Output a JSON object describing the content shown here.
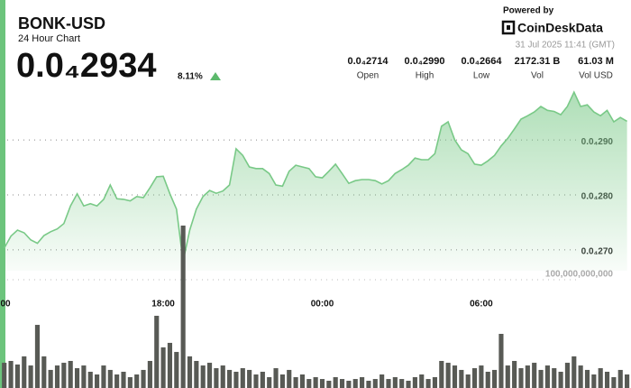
{
  "header": {
    "title": "BONK-USD",
    "subtitle": "24 Hour Chart",
    "price": "0.0₄2934",
    "change": "8.11%",
    "powered_by": "Powered by",
    "brand": "CoinDeskData",
    "timestamp": "31 Jul 2025 11:41 (GMT)",
    "stats": [
      {
        "value": "0.0₄2714",
        "label": "Open"
      },
      {
        "value": "0.0₄2990",
        "label": "High"
      },
      {
        "value": "0.0₄2664",
        "label": "Low"
      },
      {
        "value": "2172.31 B",
        "label": "Vol"
      },
      {
        "value": "61.03 M",
        "label": "Vol USD"
      }
    ]
  },
  "chart_data": [
    {
      "type": "line",
      "area": true,
      "color": "#79c987",
      "x": [
        12,
        12.25,
        12.5,
        12.75,
        13,
        13.25,
        13.5,
        13.75,
        14,
        14.25,
        14.5,
        14.75,
        15,
        15.25,
        15.5,
        15.75,
        16,
        16.25,
        16.5,
        16.75,
        17,
        17.25,
        17.5,
        17.75,
        18,
        18.25,
        18.5,
        18.75,
        19,
        19.25,
        19.5,
        19.75,
        20,
        20.25,
        20.5,
        20.75,
        21,
        21.25,
        21.5,
        21.75,
        22,
        22.25,
        22.5,
        22.75,
        23,
        23.25,
        23.5,
        23.75,
        24,
        24.25,
        24.5,
        24.75,
        25,
        25.25,
        25.5,
        25.75,
        26,
        26.25,
        26.5,
        26.75,
        27,
        27.25,
        27.5,
        27.75,
        28,
        28.25,
        28.5,
        28.75,
        29,
        29.25,
        29.5,
        29.75,
        30,
        30.25,
        30.5,
        30.75,
        31,
        31.25,
        31.5,
        31.75,
        32,
        32.25,
        32.5,
        32.75,
        33,
        33.25,
        33.5,
        33.75,
        34,
        34.25,
        34.5,
        34.75,
        35,
        35.25,
        35.5
      ],
      "values": [
        2.703e-05,
        2.725e-05,
        2.736e-05,
        2.731e-05,
        2.718e-05,
        2.712e-05,
        2.726e-05,
        2.733e-05,
        2.738e-05,
        2.748e-05,
        2.78e-05,
        2.802e-05,
        2.78e-05,
        2.784e-05,
        2.78e-05,
        2.792e-05,
        2.818e-05,
        2.793e-05,
        2.792e-05,
        2.789e-05,
        2.797e-05,
        2.795e-05,
        2.813e-05,
        2.833e-05,
        2.834e-05,
        2.802e-05,
        2.774e-05,
        2.679e-05,
        2.736e-05,
        2.774e-05,
        2.797e-05,
        2.808e-05,
        2.803e-05,
        2.807e-05,
        2.818e-05,
        2.884e-05,
        2.872e-05,
        2.851e-05,
        2.848e-05,
        2.848e-05,
        2.839e-05,
        2.818e-05,
        2.816e-05,
        2.843e-05,
        2.854e-05,
        2.851e-05,
        2.848e-05,
        2.833e-05,
        2.831e-05,
        2.843e-05,
        2.856e-05,
        2.839e-05,
        2.821e-05,
        2.826e-05,
        2.828e-05,
        2.828e-05,
        2.826e-05,
        2.82e-05,
        2.826e-05,
        2.839e-05,
        2.846e-05,
        2.854e-05,
        2.867e-05,
        2.864e-05,
        2.864e-05,
        2.875e-05,
        2.925e-05,
        2.933e-05,
        2.9e-05,
        2.882e-05,
        2.875e-05,
        2.856e-05,
        2.854e-05,
        2.862e-05,
        2.872e-05,
        2.889e-05,
        2.903e-05,
        2.92e-05,
        2.938e-05,
        2.944e-05,
        2.951e-05,
        2.961e-05,
        2.954e-05,
        2.952e-05,
        2.946e-05,
        2.961e-05,
        2.987e-05,
        2.961e-05,
        2.964e-05,
        2.951e-05,
        2.944e-05,
        2.954e-05,
        2.933e-05,
        2.941e-05,
        2.934e-05
      ],
      "xlim": [
        11.84,
        35.65
      ],
      "xticks": [
        {
          "value": 12,
          "label": "00"
        },
        {
          "value": 18,
          "label": "18:00"
        },
        {
          "value": 24,
          "label": "00:00"
        },
        {
          "value": 30,
          "label": "06:00"
        }
      ],
      "ylim": [
        2.662e-05,
        3.007e-05
      ],
      "yticks": [
        {
          "value": 2.7e-05,
          "label": "0.0₄270"
        },
        {
          "value": 2.8e-05,
          "label": "0.0₄280"
        },
        {
          "value": 2.9e-05,
          "label": "0.0₄290"
        }
      ],
      "grid": true
    },
    {
      "type": "bar",
      "color": "#585a55",
      "x": [
        12,
        12.25,
        12.5,
        12.75,
        13,
        13.25,
        13.5,
        13.75,
        14,
        14.25,
        14.5,
        14.75,
        15,
        15.25,
        15.5,
        15.75,
        16,
        16.25,
        16.5,
        16.75,
        17,
        17.25,
        17.5,
        17.75,
        18,
        18.25,
        18.5,
        18.75,
        19,
        19.25,
        19.5,
        19.75,
        20,
        20.25,
        20.5,
        20.75,
        21,
        21.25,
        21.5,
        21.75,
        22,
        22.25,
        22.5,
        22.75,
        23,
        23.25,
        23.5,
        23.75,
        24,
        24.25,
        24.5,
        24.75,
        25,
        25.25,
        25.5,
        25.75,
        26,
        26.25,
        26.5,
        26.75,
        27,
        27.25,
        27.5,
        27.75,
        28,
        28.25,
        28.5,
        28.75,
        29,
        29.25,
        29.5,
        29.75,
        30,
        30.25,
        30.5,
        30.75,
        31,
        31.25,
        31.5,
        31.75,
        32,
        32.25,
        32.5,
        32.75,
        33,
        33.25,
        33.5,
        33.75,
        34,
        34.25,
        34.5,
        34.75,
        35,
        35.25,
        35.5
      ],
      "values": [
        23300000000.0,
        25000000000.0,
        21700000000.0,
        29200000000.0,
        20800000000.0,
        58300000000.0,
        29200000000.0,
        16700000000.0,
        20800000000.0,
        23300000000.0,
        25000000000.0,
        18300000000.0,
        20800000000.0,
        15000000000.0,
        12500000000.0,
        20800000000.0,
        16700000000.0,
        12500000000.0,
        15000000000.0,
        10000000000.0,
        12500000000.0,
        16700000000.0,
        25000000000.0,
        66700000000.0,
        37500000000.0,
        41700000000.0,
        33300000000.0,
        150000000000.0,
        29200000000.0,
        25000000000.0,
        20800000000.0,
        23300000000.0,
        18300000000.0,
        20800000000.0,
        16700000000.0,
        15000000000.0,
        18300000000.0,
        16700000000.0,
        12500000000.0,
        15000000000.0,
        10000000000.0,
        18300000000.0,
        12500000000.0,
        16700000000.0,
        10000000000.0,
        12500000000.0,
        8300000000.0,
        10000000000.0,
        8300000000.0,
        6700000000.0,
        10000000000.0,
        8300000000.0,
        6700000000.0,
        8300000000.0,
        10000000000.0,
        6700000000.0,
        8300000000.0,
        12500000000.0,
        8300000000.0,
        10000000000.0,
        8300000000.0,
        6700000000.0,
        10000000000.0,
        12500000000.0,
        8300000000.0,
        10000000000.0,
        25000000000.0,
        23300000000.0,
        20800000000.0,
        16700000000.0,
        12500000000.0,
        18300000000.0,
        20800000000.0,
        15000000000.0,
        16700000000.0,
        50000000000.0,
        20800000000.0,
        25000000000.0,
        18300000000.0,
        20800000000.0,
        23300000000.0,
        16700000000.0,
        20800000000.0,
        18300000000.0,
        15000000000.0,
        23300000000.0,
        29200000000.0,
        20800000000.0,
        16700000000.0,
        12500000000.0,
        18300000000.0,
        15000000000.0,
        10000000000.0,
        16700000000.0,
        12500000000.0
      ],
      "xlim": [
        11.84,
        35.65
      ],
      "ylim": [
        0,
        150000000000.0
      ],
      "yticks": [
        {
          "value": 100000000000.0,
          "label": "100,000,000,000"
        }
      ]
    }
  ]
}
